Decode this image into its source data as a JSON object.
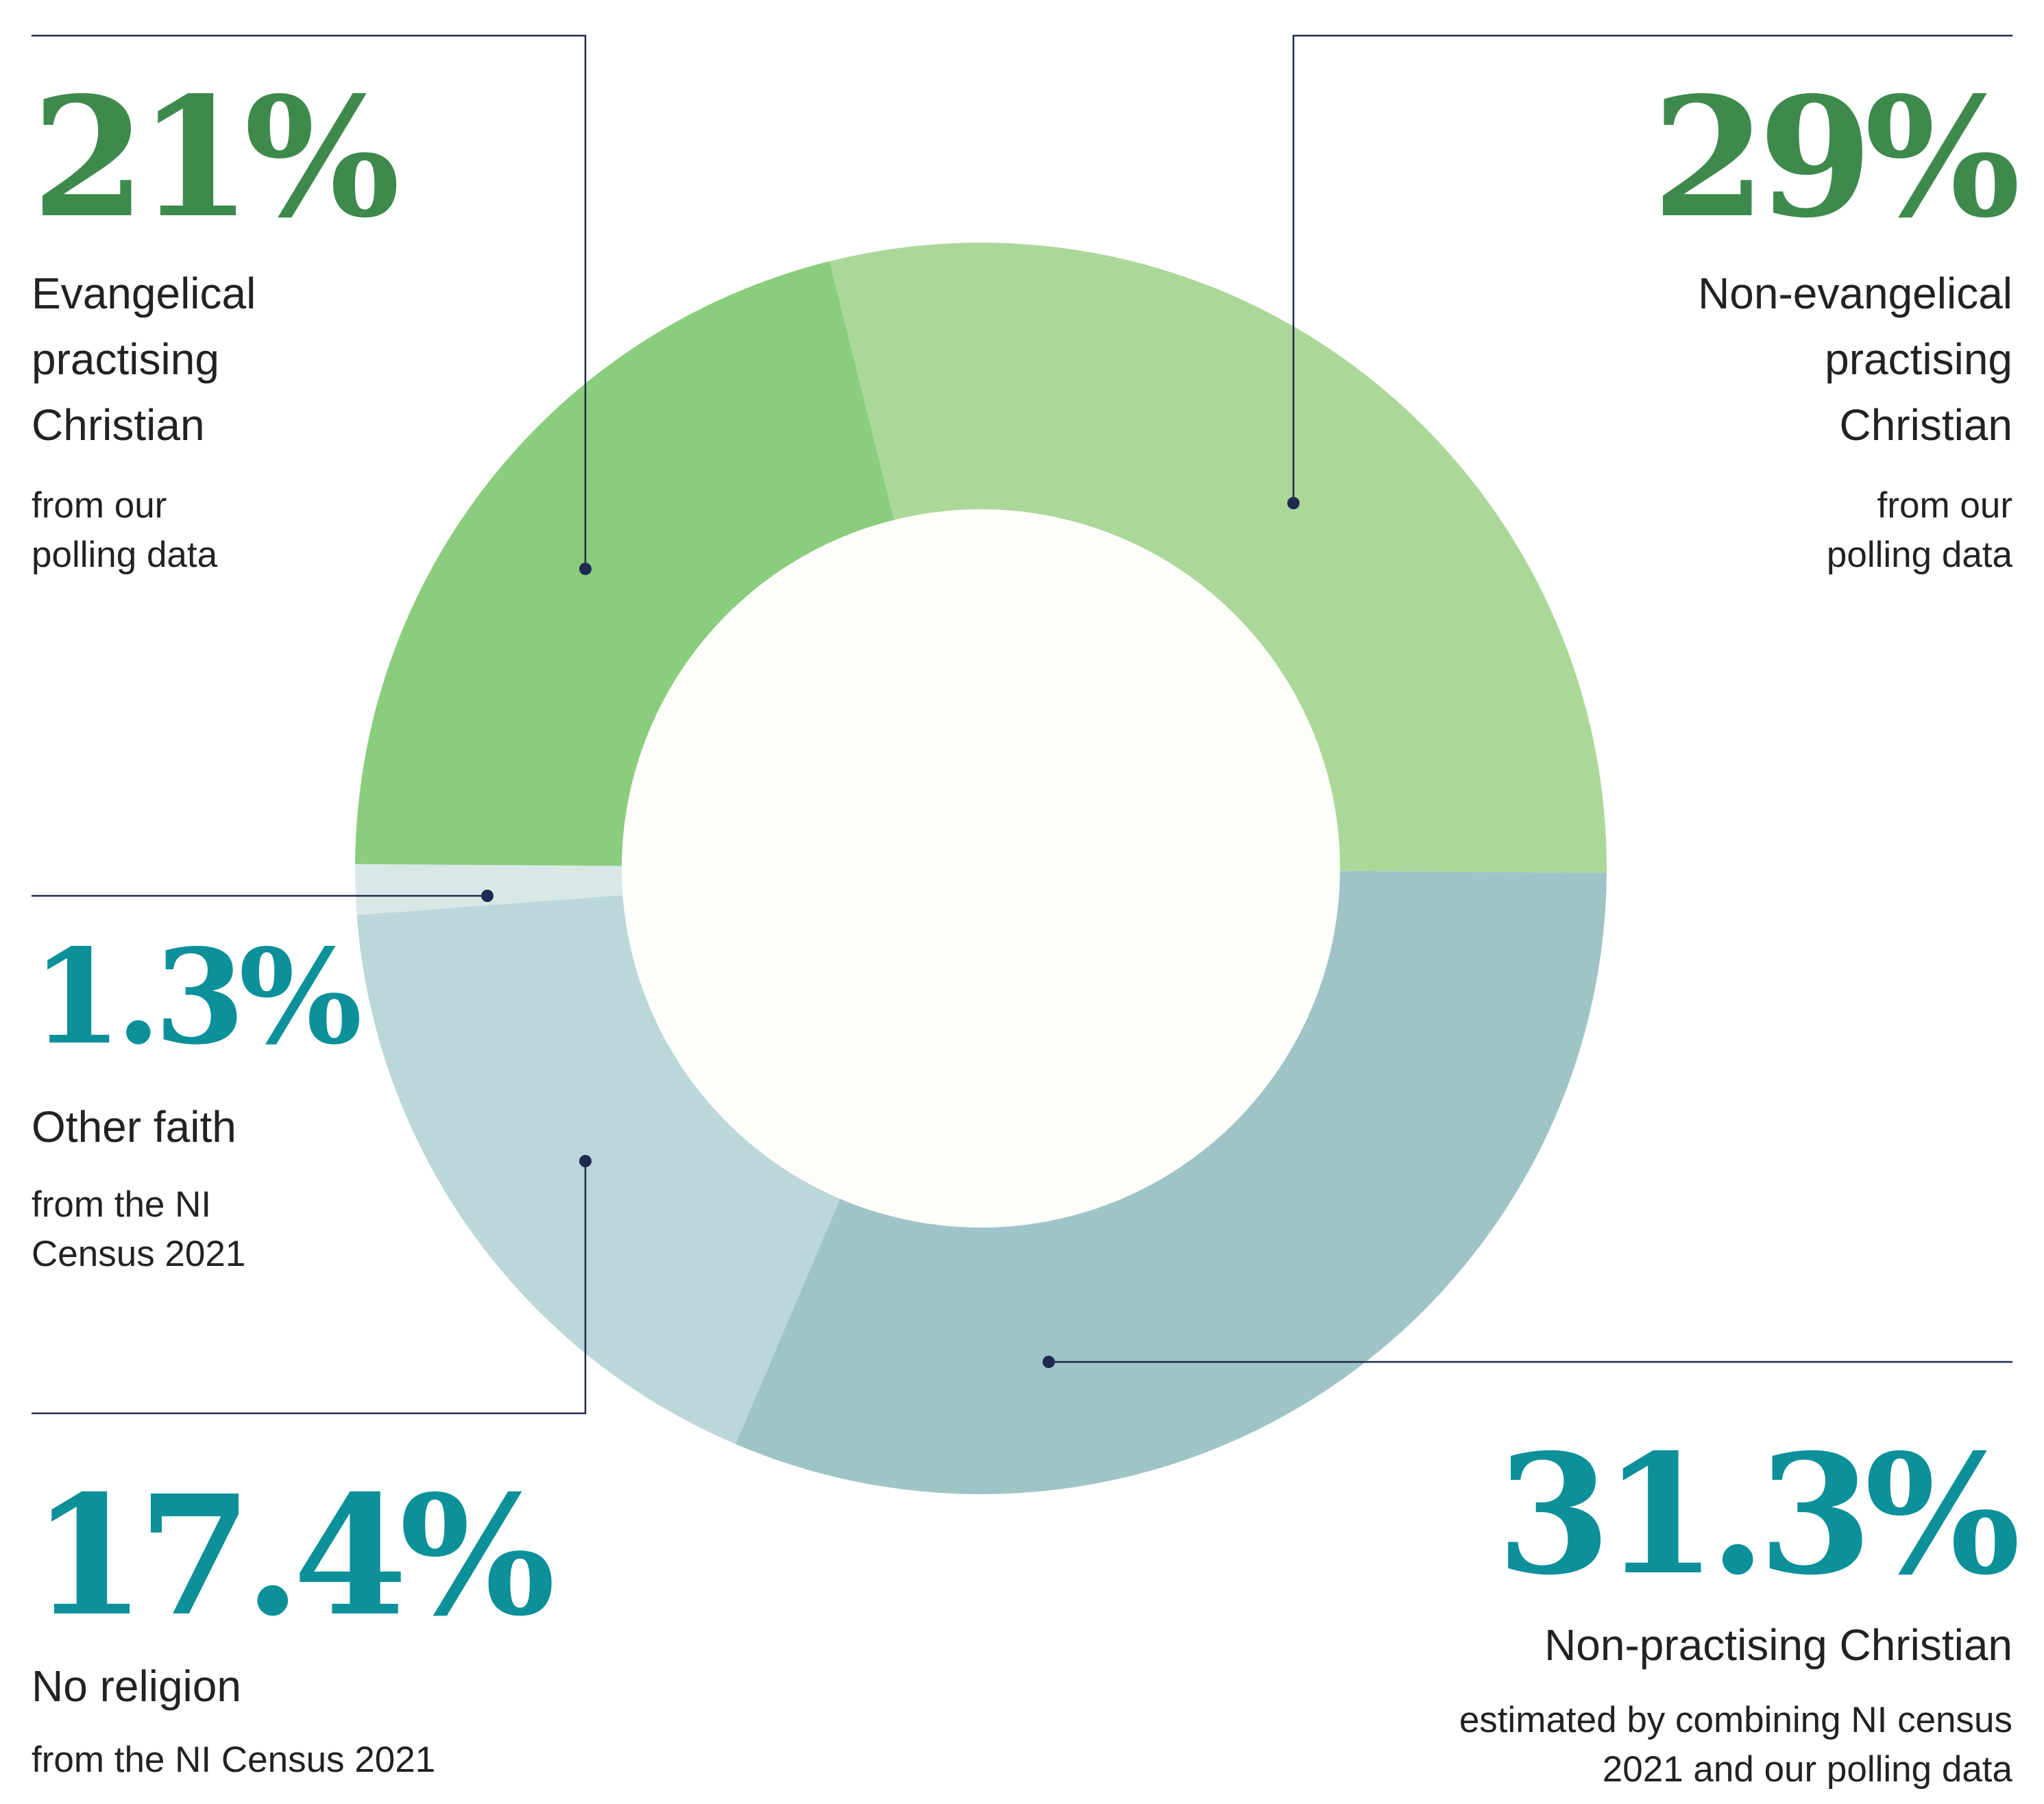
{
  "chart_data": {
    "type": "pie",
    "variant": "donut",
    "series": [
      {
        "name": "Non-evangelical practising Christian",
        "value": 29,
        "value_label": "29%",
        "source": "from our polling data",
        "color": "#abd898"
      },
      {
        "name": "Non-practising Christian",
        "value": 31.3,
        "value_label": "31.3%",
        "source": "estimated by combining NI census 2021 and our polling data",
        "color": "#9fc4c7"
      },
      {
        "name": "No religion",
        "value": 17.4,
        "value_label": "17.4%",
        "source": "from the NI Census 2021",
        "color": "#bbd7d9"
      },
      {
        "name": "Other faith",
        "value": 1.3,
        "value_label": "1.3%",
        "source": "from the NI Census 2021",
        "color": "#d8e8e7"
      },
      {
        "name": "Evangelical practising Christian",
        "value": 21,
        "value_label": "21%",
        "source": "from our polling data",
        "color": "#8acd7d"
      }
    ],
    "center_color": "#fdfdf9",
    "leader_color": "#1e2a4f"
  },
  "labels": {
    "evangelical": {
      "pct": "21%",
      "name_lines": [
        "Evangelical",
        "practising",
        "Christian"
      ],
      "source_lines": [
        "from our",
        "polling data"
      ]
    },
    "non_evangelical": {
      "pct": "29%",
      "name_lines": [
        "Non-evangelical",
        "practising",
        "Christian"
      ],
      "source_lines": [
        "from our",
        "polling data"
      ]
    },
    "other_faith": {
      "pct": "1.3%",
      "name_lines": [
        "Other faith"
      ],
      "source_lines": [
        "from the NI",
        "Census 2021"
      ]
    },
    "no_religion": {
      "pct": "17.4%",
      "name_lines": [
        "No religion"
      ],
      "source_lines": [
        "from the NI Census 2021"
      ]
    },
    "non_practising": {
      "pct": "31.3%",
      "name_lines": [
        "Non-practising Christian"
      ],
      "source_lines": [
        "estimated by combining NI census",
        "2021 and our polling data"
      ]
    }
  }
}
